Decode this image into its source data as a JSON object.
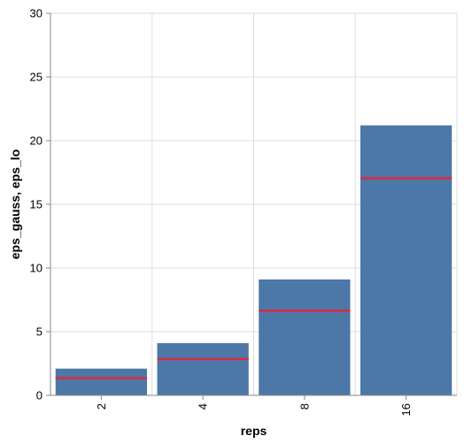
{
  "chart_data": {
    "type": "bar",
    "categories": [
      "2",
      "4",
      "8",
      "16"
    ],
    "series": [
      {
        "values": [
          2.1,
          4.1,
          9.1,
          21.2
        ],
        "mark": "bar"
      },
      {
        "values": [
          1.35,
          2.85,
          6.65,
          17.05
        ],
        "mark": "tick"
      }
    ],
    "xlabel": "reps",
    "ylabel": "eps_gauss, eps_lo",
    "ylim": [
      0,
      30
    ],
    "yticks": [
      0,
      5,
      10,
      15,
      20,
      25,
      30
    ],
    "grid": true,
    "colors": {
      "bar": "#4c78a8",
      "tick": "#e0273f",
      "grid": "#dddddd",
      "axis": "#888888"
    }
  }
}
